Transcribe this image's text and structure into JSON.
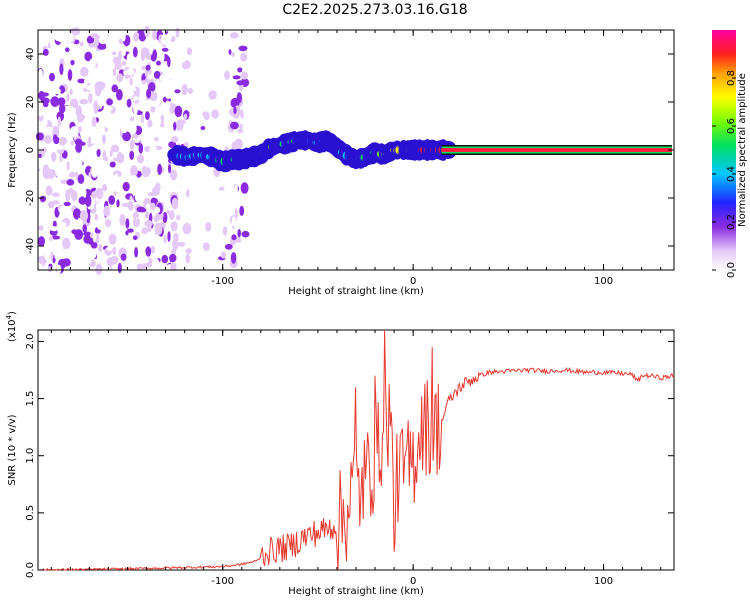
{
  "title": "C2E2.2025.273.03.16.G18",
  "chart_data": [
    {
      "type": "heatmap",
      "xlabel": "Height of straight line (km)",
      "ylabel": "Frequency (Hz)",
      "xlim": [
        -197,
        137
      ],
      "ylim": [
        -50,
        50
      ],
      "xticks": [
        -100,
        0,
        100
      ],
      "xtick_labels": [
        "-100",
        "0",
        "100"
      ],
      "yticks": [
        -40,
        -20,
        0,
        20,
        40
      ],
      "ytick_labels": [
        "-40",
        "-20",
        "0",
        "20",
        "40"
      ],
      "colorbar": {
        "label": "Normalized spectral amplitude",
        "range": [
          0,
          1
        ],
        "ticks": [
          0,
          0.2,
          0.4,
          0.6,
          0.8
        ],
        "tick_labels": [
          "0.0",
          "0.2",
          "0.4",
          "0.6",
          "0.8"
        ]
      },
      "noise_region_x": [
        -197,
        -88
      ],
      "signal_track": {
        "x": [
          -125,
          -118,
          -112,
          -105,
          -100,
          -95,
          -90,
          -85,
          -80,
          -75,
          -70,
          -65,
          -60,
          -55,
          -50,
          -45,
          -40,
          -35,
          -30,
          -25,
          -20,
          -15,
          -10,
          -5,
          0,
          5,
          10,
          15,
          20,
          137
        ],
        "freq": [
          -2,
          -3,
          -2,
          -3,
          -5,
          -4,
          -4,
          -3,
          -2,
          1,
          2,
          3,
          4,
          4,
          3,
          4,
          1,
          -2,
          -4,
          -3,
          -1,
          -2,
          0,
          0,
          0,
          0,
          0,
          0,
          0,
          0
        ],
        "amplitude": [
          0.4,
          0.45,
          0.5,
          0.5,
          0.55,
          0.55,
          0.6,
          0.6,
          0.65,
          0.7,
          0.6,
          0.55,
          0.6,
          0.5,
          0.45,
          0.45,
          0.5,
          0.5,
          0.45,
          0.55,
          0.6,
          0.7,
          0.75,
          0.8,
          0.85,
          0.9,
          0.95,
          0.95,
          0.95,
          0.95
        ]
      }
    },
    {
      "type": "line",
      "xlabel": "Height of straight line (km)",
      "ylabel": "SNR (10 * v/v)",
      "y_multiplier_label": "(x10",
      "y_multiplier_exp": "4",
      "xlim": [
        -197,
        137
      ],
      "ylim": [
        0,
        2.1
      ],
      "xticks": [
        -100,
        0,
        100
      ],
      "xtick_labels": [
        "-100",
        "0",
        "100"
      ],
      "yticks": [
        0,
        0.5,
        1.0,
        1.5,
        2.0
      ],
      "ytick_labels": [
        "0.0",
        "0.5",
        "1.0",
        "1.5",
        "2.0"
      ],
      "color": "#e8392f",
      "series": [
        {
          "name": "SNR",
          "x": [
            -197,
            -150,
            -100,
            -90,
            -82,
            -78,
            -72,
            -65,
            -58,
            -52,
            -46,
            -40,
            -35,
            -32,
            -28,
            -25,
            -20,
            -15,
            -12,
            -10,
            -8,
            -5,
            -2,
            0,
            3,
            5,
            8,
            10,
            12,
            15,
            18,
            22,
            26,
            30,
            35,
            40,
            50,
            60,
            70,
            80,
            90,
            100,
            110,
            115,
            118,
            120,
            125,
            130,
            137
          ],
          "y": [
            0.0,
            0.01,
            0.03,
            0.05,
            0.08,
            0.15,
            0.18,
            0.2,
            0.28,
            0.32,
            0.35,
            0.4,
            0.5,
            0.75,
            0.7,
            0.8,
            0.95,
            1.25,
            1.4,
            0.45,
            0.85,
            0.85,
            0.9,
            0.95,
            1.2,
            1.3,
            1.25,
            1.15,
            1.25,
            1.3,
            1.45,
            1.55,
            1.62,
            1.66,
            1.7,
            1.73,
            1.74,
            1.75,
            1.74,
            1.75,
            1.73,
            1.73,
            1.72,
            1.71,
            1.65,
            1.7,
            1.7,
            1.68,
            1.7
          ]
        }
      ],
      "spikes": [
        {
          "x": -15,
          "y": 2.1
        },
        {
          "x": 10,
          "y": 1.95
        },
        {
          "x": -30,
          "y": 1.6
        },
        {
          "x": -20,
          "y": 1.7
        }
      ]
    }
  ]
}
